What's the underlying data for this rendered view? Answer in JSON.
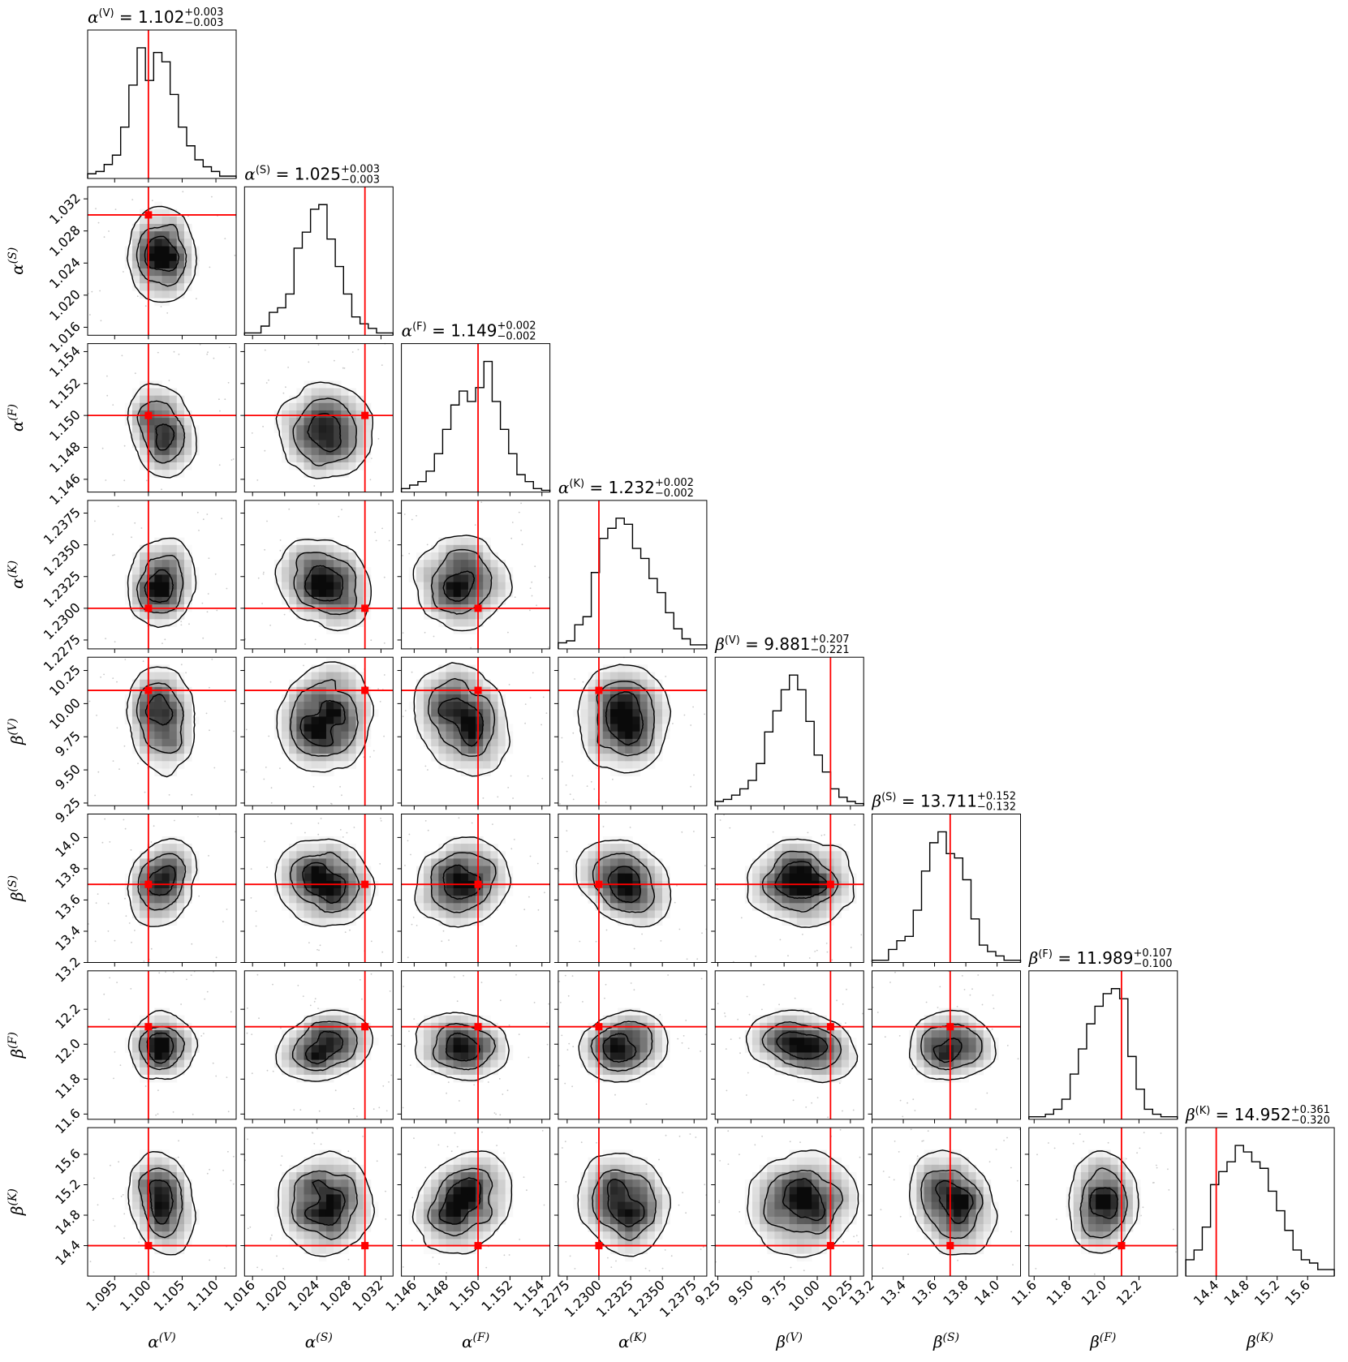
{
  "chart_data": {
    "type": "corner",
    "parameters": [
      {
        "label_base": "α",
        "label_sup": "(V)",
        "title_value": "1.102",
        "err_plus": "+0.003",
        "err_minus": "−0.003",
        "range": [
          1.091,
          1.113
        ],
        "truth": 1.1,
        "median": 1.102,
        "sigma": 0.0025,
        "ticks": [
          "1.095",
          "1.100",
          "1.105",
          "1.110"
        ],
        "tick_values": [
          1.095,
          1.1,
          1.105,
          1.11
        ],
        "hist": [
          2,
          3,
          6,
          10,
          22,
          40,
          56,
          42,
          54,
          50,
          36,
          22,
          14,
          8,
          5,
          3,
          1,
          1
        ]
      },
      {
        "label_base": "α",
        "label_sup": "(S)",
        "title_value": "1.025",
        "err_plus": "+0.003",
        "err_minus": "−0.003",
        "range": [
          1.015,
          1.0335
        ],
        "truth": 1.03,
        "median": 1.025,
        "sigma": 0.003,
        "ticks": [
          "1.016",
          "1.020",
          "1.024",
          "1.028",
          "1.032"
        ],
        "tick_values": [
          1.016,
          1.02,
          1.024,
          1.028,
          1.032
        ],
        "hist": [
          1,
          1,
          4,
          10,
          12,
          18,
          38,
          45,
          55,
          57,
          42,
          30,
          18,
          8,
          5,
          3,
          1,
          1
        ]
      },
      {
        "label_base": "α",
        "label_sup": "(F)",
        "title_value": "1.149",
        "err_plus": "+0.002",
        "err_minus": "−0.002",
        "range": [
          1.1452,
          1.1545
        ],
        "truth": 1.15,
        "median": 1.149,
        "sigma": 0.0015,
        "ticks": [
          "1.146",
          "1.148",
          "1.150",
          "1.152",
          "1.154"
        ],
        "tick_values": [
          1.146,
          1.148,
          1.15,
          1.152,
          1.154
        ],
        "hist": [
          2,
          4,
          6,
          12,
          22,
          36,
          50,
          58,
          52,
          60,
          75,
          52,
          36,
          22,
          10,
          6,
          2,
          1
        ]
      },
      {
        "label_base": "α",
        "label_sup": "(K)",
        "title_value": "1.232",
        "err_plus": "+0.002",
        "err_minus": "−0.002",
        "range": [
          1.2268,
          1.2385
        ],
        "truth": 1.23,
        "median": 1.232,
        "sigma": 0.0018,
        "ticks": [
          "1.2275",
          "1.2300",
          "1.2325",
          "1.2350",
          "1.2375"
        ],
        "tick_values": [
          1.2275,
          1.23,
          1.2325,
          1.235,
          1.2375
        ],
        "hist": [
          3,
          4,
          12,
          16,
          38,
          55,
          60,
          65,
          62,
          50,
          45,
          35,
          28,
          18,
          10,
          5,
          2,
          2
        ]
      },
      {
        "label_base": "β",
        "label_sup": "(V)",
        "title_value": "9.881",
        "err_plus": "+0.207",
        "err_minus": "−0.221",
        "range": [
          9.23,
          10.35
        ],
        "truth": 10.1,
        "median": 9.881,
        "sigma": 0.21,
        "ticks": [
          "9.25",
          "9.50",
          "9.75",
          "10.00",
          "10.25"
        ],
        "tick_values": [
          9.25,
          9.5,
          9.75,
          10.0,
          10.25
        ],
        "hist": [
          2,
          3,
          5,
          8,
          12,
          20,
          35,
          45,
          55,
          62,
          55,
          40,
          24,
          16,
          8,
          4,
          2,
          1
        ]
      },
      {
        "label_base": "β",
        "label_sup": "(S)",
        "title_value": "13.711",
        "err_plus": "+0.152",
        "err_minus": "−0.132",
        "range": [
          13.2,
          14.15
        ],
        "truth": 13.7,
        "median": 13.711,
        "sigma": 0.14,
        "ticks": [
          "13.2",
          "13.4",
          "13.6",
          "13.8",
          "14.0"
        ],
        "tick_values": [
          13.2,
          13.4,
          13.6,
          13.8,
          14.0
        ],
        "hist": [
          1,
          1,
          6,
          10,
          12,
          24,
          42,
          55,
          60,
          50,
          48,
          38,
          20,
          8,
          5,
          3,
          1,
          1
        ]
      },
      {
        "label_base": "β",
        "label_sup": "(F)",
        "title_value": "11.989",
        "err_plus": "+0.107",
        "err_minus": "−0.100",
        "range": [
          11.57,
          12.42
        ],
        "truth": 12.1,
        "median": 11.989,
        "sigma": 0.1,
        "ticks": [
          "11.6",
          "11.8",
          "12.0",
          "12.2"
        ],
        "tick_values": [
          11.6,
          11.8,
          12.0,
          12.2
        ],
        "hist": [
          1,
          1,
          2,
          4,
          8,
          18,
          28,
          38,
          45,
          50,
          52,
          48,
          25,
          12,
          4,
          2,
          1,
          1
        ]
      },
      {
        "label_base": "β",
        "label_sup": "(K)",
        "title_value": "14.952",
        "err_plus": "+0.361",
        "err_minus": "−0.320",
        "range": [
          14.0,
          15.95
        ],
        "truth": 14.4,
        "median": 14.952,
        "sigma": 0.34,
        "ticks": [
          "14.4",
          "14.8",
          "15.2",
          "15.6"
        ],
        "tick_values": [
          14.4,
          14.8,
          15.2,
          15.6
        ],
        "hist": [
          5,
          8,
          15,
          28,
          32,
          35,
          40,
          38,
          35,
          33,
          26,
          20,
          14,
          8,
          5,
          4,
          2,
          2
        ]
      }
    ]
  }
}
